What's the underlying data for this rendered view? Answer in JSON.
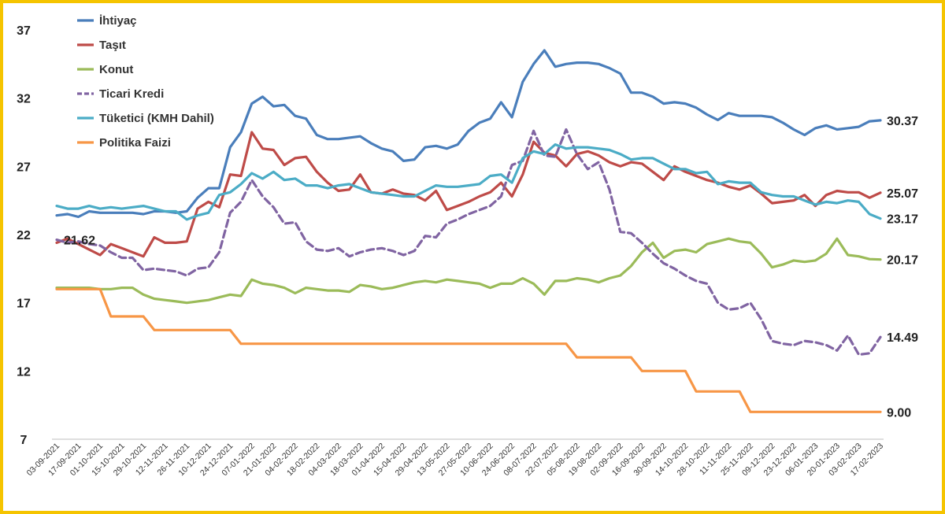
{
  "chart_data": {
    "type": "line",
    "title": "",
    "xlabel": "",
    "ylabel": "",
    "ylim": [
      7,
      37
    ],
    "yticks": [
      7,
      12,
      17,
      22,
      27,
      32,
      37
    ],
    "grid": false,
    "legend_position": "top-left",
    "x": [
      "03-09-2021",
      "10-09-2021",
      "17-09-2021",
      "24-09-2021",
      "01-10-2021",
      "08-10-2021",
      "15-10-2021",
      "22-10-2021",
      "29-10-2021",
      "05-11-2021",
      "12-11-2021",
      "19-11-2021",
      "26-11-2021",
      "03-12-2021",
      "10-12-2021",
      "17-12-2021",
      "24-12-2021",
      "31-12-2021",
      "07-01-2022",
      "14-01-2022",
      "21-01-2022",
      "28-01-2022",
      "04-02-2022",
      "11-02-2022",
      "18-02-2022",
      "25-02-2022",
      "04-03-2022",
      "11-03-2022",
      "18-03-2022",
      "25-03-2022",
      "01-04-2022",
      "08-04-2022",
      "15-04-2022",
      "22-04-2022",
      "29-04-2022",
      "06-05-2022",
      "13-05-2022",
      "20-05-2022",
      "27-05-2022",
      "03-06-2022",
      "10-06-2022",
      "17-06-2022",
      "24-06-2022",
      "01-07-2022",
      "08-07-2022",
      "15-07-2022",
      "22-07-2022",
      "29-07-2022",
      "05-08-2022",
      "12-08-2022",
      "19-08-2022",
      "26-08-2022",
      "02-09-2022",
      "09-09-2022",
      "16-09-2022",
      "23-09-2022",
      "30-09-2022",
      "07-10-2022",
      "14-10-2022",
      "21-10-2022",
      "28-10-2022",
      "04-11-2022",
      "11-11-2022",
      "18-11-2022",
      "25-11-2022",
      "02-12-2022",
      "09-12-2022",
      "16-12-2022",
      "23-12-2022",
      "30-12-2022",
      "06-01-2023",
      "13-01-2023",
      "20-01-2023",
      "27-01-2023",
      "03-02-2023",
      "10-02-2023",
      "17-02-2023"
    ],
    "xticks": [
      "03-09-2021",
      "17-09-2021",
      "01-10-2021",
      "15-10-2021",
      "29-10-2021",
      "12-11-2021",
      "26-11-2021",
      "10-12-2021",
      "24-12-2021",
      "07-01-2022",
      "21-01-2022",
      "04-02-2022",
      "18-02-2022",
      "04-03-2022",
      "18-03-2022",
      "01-04-2022",
      "15-04-2022",
      "29-04-2022",
      "13-05-2022",
      "27-05-2022",
      "10-06-2022",
      "24-06-2022",
      "08-07-2022",
      "22-07-2022",
      "05-08-2022",
      "19-08-2022",
      "02-09-2022",
      "16-09-2022",
      "30-09-2022",
      "14-10-2022",
      "28-10-2022",
      "11-11-2022",
      "25-11-2022",
      "09-12-2022",
      "23-12-2022",
      "06-01-2023",
      "20-01-2023",
      "03-02-2023",
      "17-02-2023"
    ],
    "series": [
      {
        "name": "İhtiyaç",
        "color": "#4a7ebb",
        "dash": false,
        "end_label": "30.37",
        "values": [
          23.4,
          23.5,
          23.3,
          23.7,
          23.6,
          23.6,
          23.6,
          23.6,
          23.5,
          23.7,
          23.7,
          23.6,
          23.7,
          24.7,
          25.4,
          25.4,
          28.4,
          29.5,
          31.6,
          32.1,
          31.4,
          31.5,
          30.7,
          30.5,
          29.3,
          29.0,
          29.0,
          29.1,
          29.2,
          28.7,
          28.3,
          28.1,
          27.4,
          27.5,
          28.4,
          28.5,
          28.3,
          28.6,
          29.6,
          30.2,
          30.5,
          31.7,
          30.6,
          33.2,
          34.5,
          35.5,
          34.3,
          34.5,
          34.6,
          34.6,
          34.5,
          34.2,
          33.8,
          32.4,
          32.4,
          32.1,
          31.6,
          31.7,
          31.6,
          31.3,
          30.8,
          30.4,
          30.9,
          30.7,
          30.7,
          30.7,
          30.6,
          30.2,
          29.7,
          29.3,
          29.8,
          30.0,
          29.7,
          29.8,
          29.9,
          30.3,
          30.37
        ]
      },
      {
        "name": "Taşıt",
        "color": "#be4b48",
        "dash": false,
        "end_label": "25.07",
        "values": [
          21.4,
          21.7,
          21.3,
          20.9,
          20.5,
          21.3,
          21.0,
          20.7,
          20.4,
          21.8,
          21.4,
          21.4,
          21.5,
          23.9,
          24.4,
          24.0,
          26.4,
          26.3,
          29.5,
          28.3,
          28.2,
          27.1,
          27.6,
          27.7,
          26.6,
          25.8,
          25.2,
          25.3,
          26.4,
          25.1,
          25.0,
          25.3,
          25.0,
          24.9,
          24.5,
          25.2,
          23.8,
          24.1,
          24.4,
          24.8,
          25.1,
          25.8,
          24.8,
          26.4,
          28.8,
          28.0,
          27.8,
          27.0,
          27.9,
          28.1,
          27.8,
          27.3,
          27.0,
          27.3,
          27.2,
          26.6,
          26.0,
          27.0,
          26.6,
          26.3,
          26.0,
          25.8,
          25.5,
          25.3,
          25.6,
          25.0,
          24.3,
          24.4,
          24.5,
          24.9,
          24.1,
          24.9,
          25.2,
          25.1,
          25.1,
          24.7,
          25.07
        ]
      },
      {
        "name": "Konut",
        "color": "#9bbb59",
        "dash": false,
        "end_label": "20.17",
        "values": [
          18.1,
          18.1,
          18.1,
          18.1,
          18.0,
          18.0,
          18.1,
          18.1,
          17.6,
          17.3,
          17.2,
          17.1,
          17.0,
          17.1,
          17.2,
          17.4,
          17.6,
          17.5,
          18.7,
          18.4,
          18.3,
          18.1,
          17.7,
          18.1,
          18.0,
          17.9,
          17.9,
          17.8,
          18.3,
          18.2,
          18.0,
          18.1,
          18.3,
          18.5,
          18.6,
          18.5,
          18.7,
          18.6,
          18.5,
          18.4,
          18.1,
          18.4,
          18.4,
          18.8,
          18.4,
          17.6,
          18.6,
          18.6,
          18.8,
          18.7,
          18.5,
          18.8,
          19.0,
          19.7,
          20.7,
          21.4,
          20.3,
          20.8,
          20.9,
          20.7,
          21.3,
          21.5,
          21.7,
          21.5,
          21.4,
          20.6,
          19.6,
          19.8,
          20.1,
          20.0,
          20.1,
          20.6,
          21.7,
          20.5,
          20.4,
          20.2,
          20.17
        ]
      },
      {
        "name": "Ticari Kredi",
        "color": "#8064a2",
        "dash": true,
        "end_label": "14.49",
        "values": [
          21.62,
          21.4,
          21.5,
          21.3,
          21.2,
          20.7,
          20.3,
          20.3,
          19.4,
          19.5,
          19.4,
          19.3,
          19.0,
          19.5,
          19.6,
          20.7,
          23.6,
          24.4,
          26.0,
          24.8,
          24.0,
          22.8,
          22.9,
          21.5,
          20.9,
          20.8,
          21.0,
          20.4,
          20.7,
          20.9,
          21.0,
          20.8,
          20.5,
          20.8,
          21.9,
          21.8,
          22.8,
          23.1,
          23.5,
          23.8,
          24.1,
          24.8,
          27.1,
          27.4,
          29.6,
          27.8,
          27.7,
          29.7,
          27.9,
          26.8,
          27.3,
          25.3,
          22.2,
          22.1,
          21.4,
          20.6,
          19.9,
          19.5,
          19.0,
          18.6,
          18.4,
          17.0,
          16.5,
          16.6,
          17.0,
          15.8,
          14.2,
          14.0,
          13.9,
          14.2,
          14.1,
          13.9,
          13.5,
          14.6,
          13.2,
          13.3,
          14.49
        ]
      },
      {
        "name": "Tüketici (KMH Dahil)",
        "color": "#4bacc6",
        "dash": false,
        "end_label": "23.17",
        "values": [
          24.1,
          23.9,
          23.9,
          24.1,
          23.9,
          24.0,
          23.9,
          24.0,
          24.1,
          23.9,
          23.7,
          23.7,
          23.1,
          23.4,
          23.6,
          24.9,
          25.1,
          25.7,
          26.5,
          26.1,
          26.6,
          26.0,
          26.1,
          25.6,
          25.6,
          25.4,
          25.6,
          25.7,
          25.4,
          25.1,
          25.0,
          24.9,
          24.8,
          24.8,
          25.2,
          25.6,
          25.5,
          25.5,
          25.6,
          25.7,
          26.3,
          26.4,
          25.8,
          27.6,
          28.1,
          27.9,
          28.6,
          28.3,
          28.4,
          28.4,
          28.3,
          28.2,
          27.9,
          27.5,
          27.6,
          27.6,
          27.2,
          26.8,
          26.8,
          26.5,
          26.6,
          25.7,
          25.9,
          25.8,
          25.8,
          25.1,
          24.9,
          24.8,
          24.8,
          24.5,
          24.2,
          24.4,
          24.3,
          24.5,
          24.4,
          23.5,
          23.17
        ]
      },
      {
        "name": "Politika Faizi",
        "color": "#f79646",
        "dash": false,
        "end_label": "9.00",
        "values": [
          18,
          18,
          18,
          18,
          18,
          16,
          16,
          16,
          16,
          15,
          15,
          15,
          15,
          15,
          15,
          15,
          15,
          14,
          14,
          14,
          14,
          14,
          14,
          14,
          14,
          14,
          14,
          14,
          14,
          14,
          14,
          14,
          14,
          14,
          14,
          14,
          14,
          14,
          14,
          14,
          14,
          14,
          14,
          14,
          14,
          14,
          14,
          14,
          13,
          13,
          13,
          13,
          13,
          13,
          12,
          12,
          12,
          12,
          12,
          10.5,
          10.5,
          10.5,
          10.5,
          10.5,
          9,
          9,
          9,
          9,
          9,
          9,
          9,
          9,
          9,
          9,
          9,
          9,
          9
        ]
      }
    ],
    "annotations": [
      {
        "series": "Ticari Kredi",
        "x": "03-09-2021",
        "label": "21.62"
      }
    ]
  }
}
